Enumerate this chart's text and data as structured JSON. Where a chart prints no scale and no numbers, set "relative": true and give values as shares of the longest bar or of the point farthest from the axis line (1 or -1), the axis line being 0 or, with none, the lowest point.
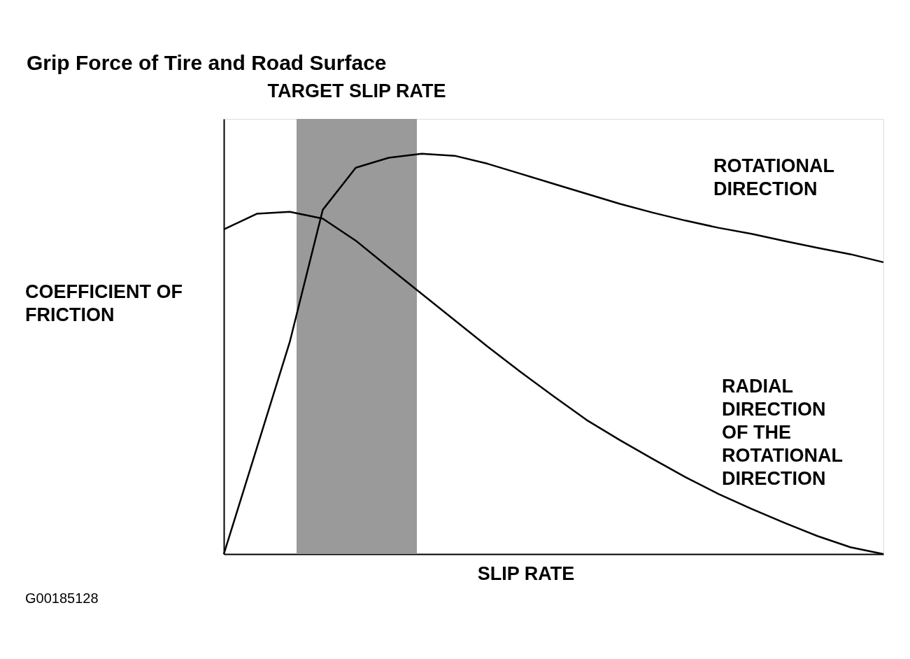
{
  "chart_data": {
    "type": "line",
    "title": "Grip Force of Tire and Road Surface",
    "xlabel": "SLIP RATE",
    "ylabel": "COEFFICIENT OF\nFRICTION",
    "relative": true,
    "tick_labels": false,
    "marker": "none",
    "line_style": "solid",
    "categories": [
      null,
      null,
      null,
      null,
      null,
      null,
      null,
      null,
      null,
      null,
      null,
      null,
      null,
      null,
      null,
      null,
      null,
      null,
      null,
      null,
      null
    ],
    "series": [
      {
        "name": "ROTATIONAL\nDIRECTION",
        "color": "#000000",
        "values": [
          0,
          0.265,
          0.53,
          0.86,
          0.965,
          0.99,
          1,
          0.995,
          0.975,
          0.95,
          0.925,
          0.9,
          0.875,
          0.853,
          0.833,
          0.815,
          0.8,
          0.782,
          0.765,
          0.749,
          0.729
        ]
      },
      {
        "name": "RADIAL\nDIRECTION\nOF THE\nROTATIONAL\nDIRECTION",
        "color": "#000000",
        "values": [
          0.811,
          0.85,
          0.855,
          0.838,
          0.783,
          0.716,
          0.65,
          0.584,
          0.518,
          0.455,
          0.394,
          0.335,
          0.285,
          0.238,
          0.192,
          0.15,
          0.113,
          0.078,
          0.045,
          0.017,
          0
        ]
      }
    ],
    "annotations": [
      "TARGET SLIP RATE",
      "G00185128"
    ]
  }
}
